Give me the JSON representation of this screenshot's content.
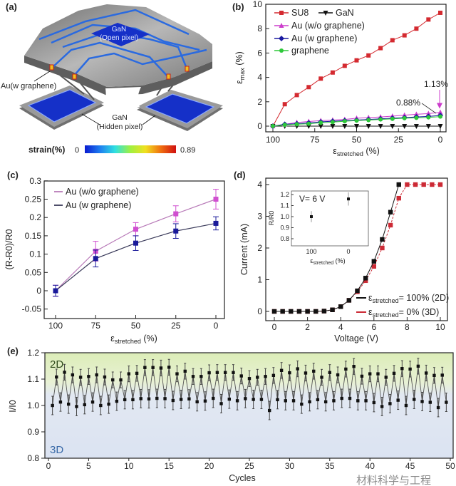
{
  "panels": {
    "a": {
      "label": "(a)",
      "open_pixel_line1": "GaN",
      "open_pixel_line2": "(Open pixel)",
      "au_label": "Au(w graphene)",
      "hidden_pixel_line1": "GaN",
      "hidden_pixel_line2": "(Hidden pixel)",
      "colorbar_title": "strain(%)",
      "colorbar_min": "0",
      "colorbar_max": "0.89",
      "colorbar_colors": [
        "#0a1ad0",
        "#1e7ef0",
        "#30e0e0",
        "#a0f040",
        "#f0e020",
        "#f07010",
        "#d01010"
      ],
      "platform_color": "#8a8a8a",
      "pixel_color": "#1530c8",
      "trace_color": "#2a6ae0"
    }
  },
  "chart_data": [
    {
      "panel": "(b)",
      "type": "line",
      "xlabel": {
        "main": "ε",
        "sub": "stretched",
        "unit": " (%)"
      },
      "ylabel": {
        "main": "ε",
        "sub": "max",
        "unit": " (%)"
      },
      "xlim": [
        100,
        0
      ],
      "ylim": [
        0,
        10
      ],
      "xticks": [
        "100",
        "75",
        "50",
        "25",
        "0"
      ],
      "yticks": [
        "0",
        "2",
        "4",
        "6",
        "8",
        "10"
      ],
      "x": [
        100,
        92.9,
        85.7,
        78.6,
        71.4,
        64.3,
        57.1,
        50,
        42.9,
        35.7,
        28.6,
        21.4,
        14.3,
        7.1,
        0
      ],
      "series": [
        {
          "name": "SU8",
          "color": "#d42a30",
          "marker": "square",
          "values": [
            0,
            1.8,
            2.55,
            3.2,
            3.9,
            4.4,
            4.95,
            5.4,
            5.8,
            6.4,
            7.05,
            7.45,
            8.0,
            8.75,
            9.3
          ]
        },
        {
          "name": "GaN",
          "color": "#111111",
          "marker": "triangle-down",
          "values": [
            0,
            0,
            0,
            0,
            0,
            0,
            0,
            0,
            0,
            0,
            0,
            0,
            0,
            0,
            0
          ]
        },
        {
          "name": "Au (w/o graphene)",
          "color": "#cc3ccc",
          "marker": "triangle-up",
          "values": [
            0,
            0.15,
            0.3,
            0.38,
            0.45,
            0.5,
            0.55,
            0.65,
            0.7,
            0.75,
            0.82,
            0.9,
            0.97,
            1.03,
            1.13
          ]
        },
        {
          "name": "Au (w graphene)",
          "color": "#1a1aa0",
          "marker": "diamond",
          "values": [
            0,
            0.15,
            0.2,
            0.26,
            0.35,
            0.4,
            0.45,
            0.5,
            0.55,
            0.6,
            0.65,
            0.7,
            0.75,
            0.8,
            0.88
          ]
        },
        {
          "name": "graphene",
          "color": "#2ec83a",
          "marker": "circle",
          "values": [
            0,
            0.1,
            0.15,
            0.2,
            0.28,
            0.33,
            0.4,
            0.45,
            0.5,
            0.55,
            0.6,
            0.65,
            0.68,
            0.72,
            0.78
          ]
        }
      ],
      "annotations": [
        "1.13%",
        "0.88%"
      ],
      "legend": "top-left"
    },
    {
      "panel": "(c)",
      "type": "line",
      "xlabel": {
        "main": "ε",
        "sub": "stretched",
        "unit": " (%)"
      },
      "ylabel": "(R-R0)/R0",
      "xlim": [
        100,
        0
      ],
      "ylim": [
        -0.075,
        0.3
      ],
      "xticks": [
        "100",
        "75",
        "50",
        "25",
        "0"
      ],
      "yticks": [
        "-0.05",
        "0",
        "0.05",
        "0.1",
        "0.15",
        "0.2",
        "0.25",
        "0.3"
      ],
      "x": [
        100,
        75,
        50,
        25,
        0
      ],
      "series": [
        {
          "name": "Au (w/o graphene)",
          "color": "#d04fd0",
          "line_color": "#b87ab8",
          "values": [
            0,
            0.108,
            0.168,
            0.21,
            0.25
          ],
          "errors": [
            0.015,
            0.027,
            0.018,
            0.022,
            0.027
          ]
        },
        {
          "name": "Au (w graphene)",
          "color": "#1a1a9a",
          "line_color": "#3a3a5a",
          "values": [
            0,
            0.088,
            0.13,
            0.163,
            0.184
          ],
          "errors": [
            0.015,
            0.023,
            0.02,
            0.02,
            0.018
          ]
        }
      ],
      "legend": "top-left"
    },
    {
      "panel": "(d)",
      "type": "line",
      "xlabel": "Voltage (V)",
      "ylabel": "Current (mA)",
      "xlim": [
        0,
        10
      ],
      "ylim": [
        0,
        4
      ],
      "xticks": [
        "0",
        "2",
        "4",
        "6",
        "8",
        "10"
      ],
      "yticks": [
        "0",
        "1",
        "2",
        "3",
        "4"
      ],
      "series": [
        {
          "name": {
            "main": "ε",
            "sub": "stretched",
            "rest": "= 100% (2D)"
          },
          "color": "#111111",
          "x": [
            0,
            0.5,
            1,
            1.5,
            2,
            2.5,
            3,
            3.5,
            4,
            4.5,
            5,
            5.5,
            6,
            6.5,
            7,
            7.5
          ],
          "values": [
            0,
            0,
            0,
            0,
            0,
            0,
            0.01,
            0.05,
            0.15,
            0.35,
            0.65,
            1.05,
            1.58,
            2.27,
            3.13,
            4.0
          ]
        },
        {
          "name": {
            "main": "ε",
            "sub": "stretched",
            "rest": "= 0% (3D)"
          },
          "color": "#cc2a35",
          "x": [
            0,
            0.5,
            1,
            1.5,
            2,
            2.5,
            3,
            3.5,
            4,
            4.5,
            5,
            5.5,
            6,
            6.5,
            7,
            7.5,
            8,
            8.5,
            9,
            9.5,
            10
          ],
          "values": [
            0,
            0,
            0,
            0,
            0,
            0,
            0.01,
            0.05,
            0.15,
            0.35,
            0.62,
            0.97,
            1.42,
            2.0,
            2.72,
            3.57,
            4,
            4,
            4,
            4,
            4
          ]
        }
      ],
      "legend": "bottom-right",
      "inset": {
        "annotation": "V= 6 V",
        "xlabel": {
          "main": "ε",
          "sub": "stretched",
          "unit": " (%)"
        },
        "ylabel": "R/R0",
        "xticks": [
          "100",
          "0"
        ],
        "yticks": [
          "0.8",
          "0.9",
          "1.0",
          "1.1",
          "1.2"
        ],
        "ylim": [
          0.75,
          1.25
        ],
        "x": [
          100,
          0
        ],
        "values": [
          1.0,
          1.16
        ],
        "errors": [
          0.05,
          0.06
        ]
      }
    },
    {
      "panel": "(e)",
      "type": "line",
      "xlabel": "Cycles",
      "ylabel": "I/I0",
      "xlim": [
        0,
        50
      ],
      "ylim": [
        0.8,
        1.2
      ],
      "xticks": [
        "0",
        "5",
        "10",
        "15",
        "20",
        "25",
        "30",
        "35",
        "40",
        "45",
        "50"
      ],
      "yticks": [
        "0.8",
        "0.9",
        "1.0",
        "1.1",
        "1.2"
      ],
      "regions": [
        {
          "label": "2D",
          "color": "#e2efc6"
        },
        {
          "label": "3D",
          "color": "#dfe6f3"
        }
      ],
      "state_2d": {
        "x_start": 1,
        "x_step": 1,
        "values": [
          1.108,
          1.126,
          1.116,
          1.107,
          1.11,
          1.116,
          1.108,
          1.097,
          1.097,
          1.12,
          1.122,
          1.144,
          1.144,
          1.142,
          1.145,
          1.12,
          1.13,
          1.11,
          1.11,
          1.124,
          1.125,
          1.125,
          1.125,
          1.112,
          1.102,
          1.107,
          1.11,
          1.114,
          1.133,
          1.124,
          1.139,
          1.123,
          1.13,
          1.107,
          1.125,
          1.116,
          1.138,
          1.148,
          1.111,
          1.12,
          1.12,
          1.107,
          1.122,
          1.14,
          1.138,
          1.149,
          1.123,
          1.114,
          1.115
        ],
        "error": 0.03
      },
      "state_3d": {
        "x_start": 0.5,
        "x_step": 1,
        "values": [
          1.0,
          1.013,
          1.005,
          0.996,
          1.003,
          1.013,
          1.0,
          1.005,
          1.016,
          1.022,
          1.022,
          1.026,
          1.025,
          1.027,
          1.026,
          1.019,
          1.023,
          1.025,
          1.014,
          1.017,
          1.027,
          1.007,
          1.024,
          1.018,
          1.026,
          1.023,
          1.023,
          0.981,
          1.022,
          1.018,
          1.018,
          1.005,
          1.014,
          1.022,
          1.014,
          1.018,
          1.027,
          1.027,
          1.018,
          1.018,
          1.011,
          0.996,
          1.007,
          1.02,
          1.0,
          1.023,
          1.015,
          1.012,
          0.992,
          1.012
        ],
        "error": 0.035
      },
      "watermark": "材料科学与工程"
    }
  ]
}
